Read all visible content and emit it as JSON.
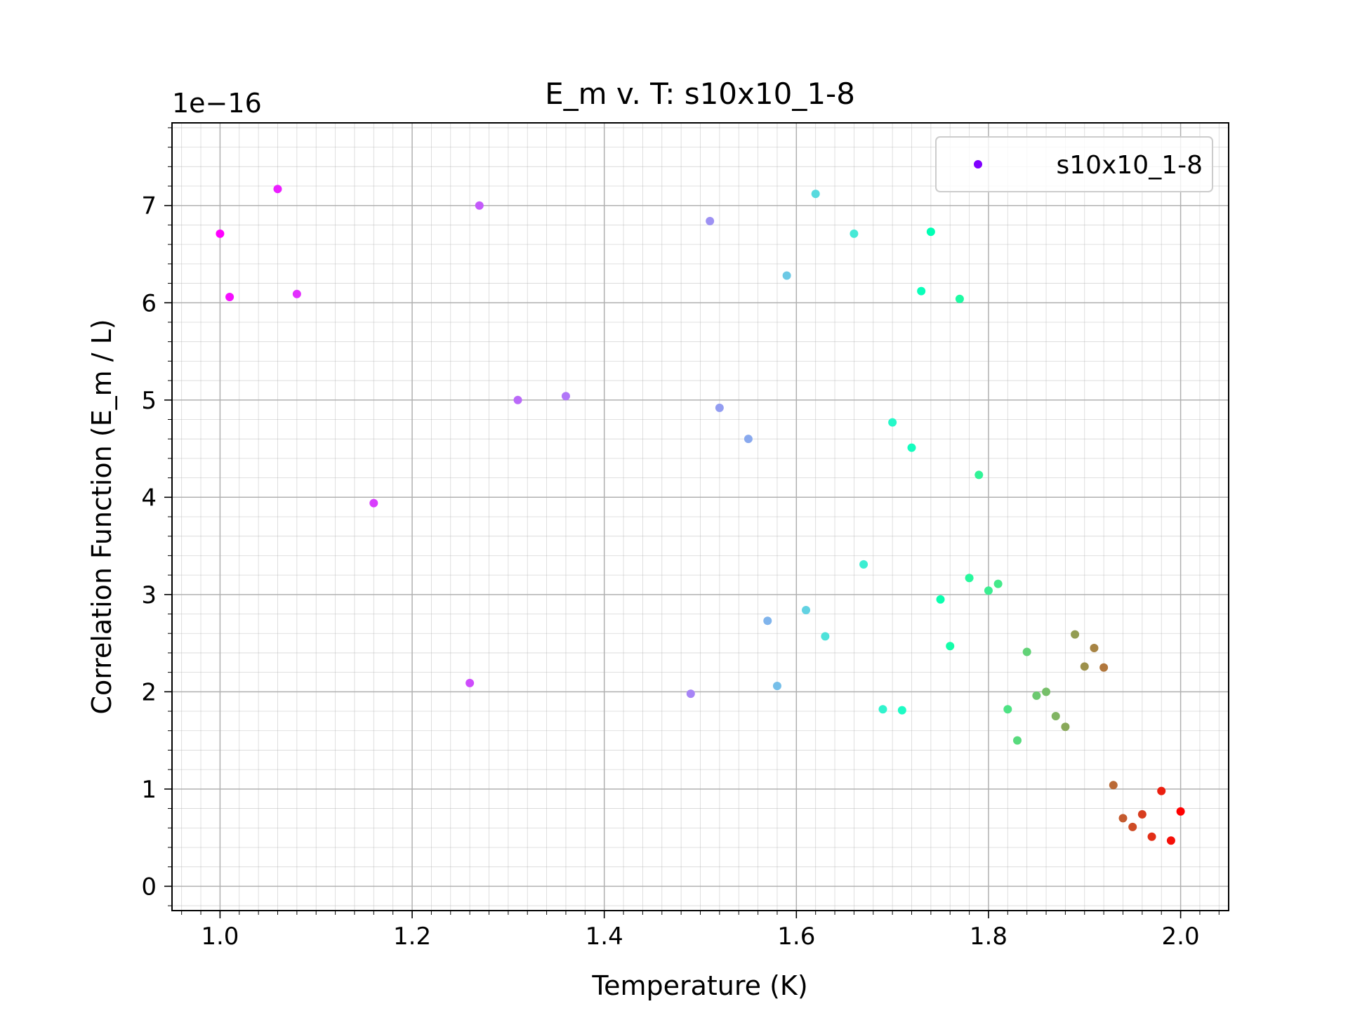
{
  "chart_data": {
    "type": "scatter",
    "title": "E_m v. T: s10x10_1-8",
    "xlabel": "Temperature (K)",
    "ylabel": "Correlation Function (E_m / L)",
    "y_offset_label": "1e−16",
    "xlim": [
      0.95,
      2.05
    ],
    "ylim": [
      -0.25,
      7.85
    ],
    "x_ticks": [
      1.0,
      1.2,
      1.4,
      1.6,
      1.8,
      2.0
    ],
    "x_tick_labels": [
      "1.0",
      "1.2",
      "1.4",
      "1.6",
      "1.8",
      "2.0"
    ],
    "y_ticks": [
      0,
      1,
      2,
      3,
      4,
      5,
      6,
      7
    ],
    "y_tick_labels": [
      "0",
      "1",
      "2",
      "3",
      "4",
      "5",
      "6",
      "7"
    ],
    "grid": true,
    "minor_grid": true,
    "legend_position": "top-right",
    "colormap": "rainbow",
    "series": [
      {
        "name": "s10x10_1-8",
        "legend_color": "#8000ff",
        "x": [
          1.0,
          1.01,
          1.06,
          1.08,
          1.16,
          1.26,
          1.27,
          1.31,
          1.36,
          1.49,
          1.51,
          1.52,
          1.55,
          1.57,
          1.58,
          1.59,
          1.61,
          1.62,
          1.63,
          1.66,
          1.67,
          1.69,
          1.7,
          1.71,
          1.72,
          1.73,
          1.74,
          1.75,
          1.76,
          1.77,
          1.78,
          1.79,
          1.8,
          1.81,
          1.82,
          1.83,
          1.84,
          1.85,
          1.86,
          1.87,
          1.88,
          1.89,
          1.9,
          1.91,
          1.92,
          1.93,
          1.94,
          1.95,
          1.96,
          1.97,
          1.98,
          1.99,
          2.0
        ],
        "y": [
          6.71,
          6.06,
          7.17,
          6.09,
          3.94,
          2.09,
          7.0,
          5.0,
          5.04,
          1.98,
          6.84,
          4.92,
          4.6,
          2.73,
          2.06,
          6.28,
          2.84,
          7.12,
          2.57,
          6.71,
          3.31,
          1.82,
          4.77,
          1.81,
          4.51,
          6.12,
          6.73,
          2.95,
          2.47,
          6.04,
          3.17,
          4.23,
          3.04,
          3.11,
          1.82,
          1.5,
          2.41,
          1.96,
          2.0,
          1.75,
          1.64,
          2.59,
          2.26,
          2.45,
          2.25,
          1.04,
          0.7,
          0.61,
          0.74,
          0.51,
          0.98,
          0.47,
          0.77
        ]
      }
    ]
  }
}
